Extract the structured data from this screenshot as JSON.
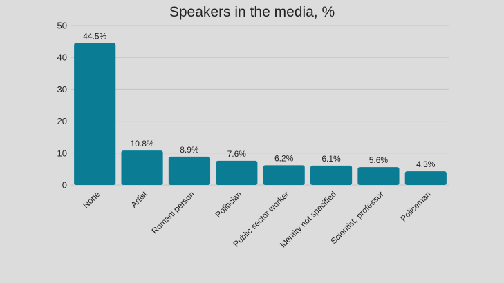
{
  "chart_data": {
    "type": "bar",
    "title": "Speakers in the media, %",
    "categories": [
      "None",
      "Artist",
      "Romani person",
      "Politician",
      "Public sector worker",
      "Identity not specified",
      "Scientist, professor",
      "Policeman"
    ],
    "values": [
      44.5,
      10.8,
      8.9,
      7.6,
      6.2,
      6.1,
      5.6,
      4.3
    ],
    "value_labels": [
      "44.5%",
      "10.8%",
      "8.9%",
      "7.6%",
      "6.2%",
      "6.1%",
      "5.6%",
      "4.3%"
    ],
    "ylim": [
      0,
      50
    ],
    "yticks": [
      "0",
      "10",
      "20",
      "30",
      "40",
      "50"
    ],
    "grid": true,
    "bar_color": "#0a7d95",
    "grid_color": "#c4c4c4"
  }
}
